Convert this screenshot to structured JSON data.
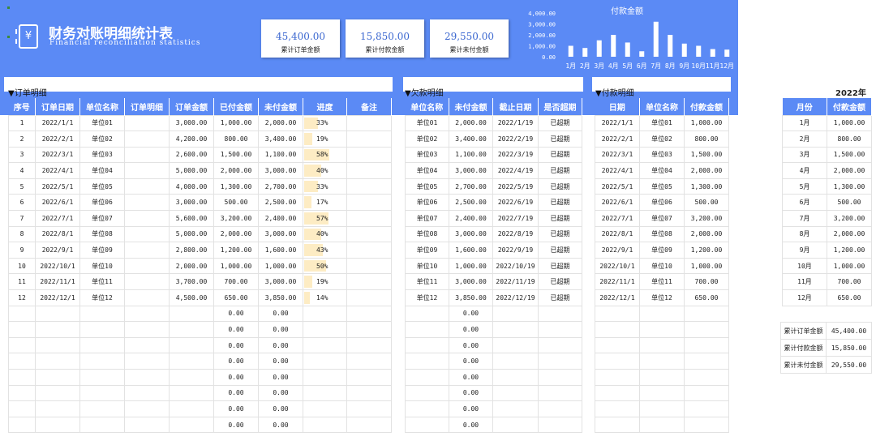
{
  "header": {
    "logo_glyph": "¥",
    "title": "财务对账明细统计表",
    "subtitle": "Financial reconciliation statistics",
    "kpis": [
      {
        "value": "45,400.00",
        "label": "累计订单金额"
      },
      {
        "value": "15,850.00",
        "label": "累计付款金额"
      },
      {
        "value": "29,550.00",
        "label": "累计未付金额"
      }
    ]
  },
  "chart_data": {
    "type": "bar",
    "title": "付款金额",
    "categories": [
      "1月",
      "2月",
      "3月",
      "4月",
      "5月",
      "6月",
      "7月",
      "8月",
      "9月",
      "10月",
      "11月",
      "12月"
    ],
    "values": [
      1000,
      800,
      1500,
      2000,
      1300,
      500,
      3200,
      2000,
      1200,
      1000,
      700,
      650
    ],
    "yticks": [
      "4,000.00",
      "3,000.00",
      "2,000.00",
      "1,000.00",
      "0.00"
    ],
    "ylim": [
      0,
      4000
    ],
    "bar_color": "#ffffff"
  },
  "orders": {
    "title": "▼订单明细",
    "headers": [
      "序号",
      "订单日期",
      "单位名称",
      "订单明细",
      "订单金额",
      "已付金额",
      "未付金额",
      "进度",
      "备注"
    ],
    "rows": [
      {
        "no": "1",
        "date": "2022/1/1",
        "unit": "单位01",
        "detail": "",
        "amount": "3,000.00",
        "paid": "1,000.00",
        "unpaid": "2,000.00",
        "progress": "33%",
        "p": 0.33,
        "note": ""
      },
      {
        "no": "2",
        "date": "2022/2/1",
        "unit": "单位02",
        "detail": "",
        "amount": "4,200.00",
        "paid": "800.00",
        "unpaid": "3,400.00",
        "progress": "19%",
        "p": 0.19,
        "note": ""
      },
      {
        "no": "3",
        "date": "2022/3/1",
        "unit": "单位03",
        "detail": "",
        "amount": "2,600.00",
        "paid": "1,500.00",
        "unpaid": "1,100.00",
        "progress": "58%",
        "p": 0.58,
        "note": ""
      },
      {
        "no": "4",
        "date": "2022/4/1",
        "unit": "单位04",
        "detail": "",
        "amount": "5,000.00",
        "paid": "2,000.00",
        "unpaid": "3,000.00",
        "progress": "40%",
        "p": 0.4,
        "note": ""
      },
      {
        "no": "5",
        "date": "2022/5/1",
        "unit": "单位05",
        "detail": "",
        "amount": "4,000.00",
        "paid": "1,300.00",
        "unpaid": "2,700.00",
        "progress": "33%",
        "p": 0.33,
        "note": ""
      },
      {
        "no": "6",
        "date": "2022/6/1",
        "unit": "单位06",
        "detail": "",
        "amount": "3,000.00",
        "paid": "500.00",
        "unpaid": "2,500.00",
        "progress": "17%",
        "p": 0.17,
        "note": ""
      },
      {
        "no": "7",
        "date": "2022/7/1",
        "unit": "单位07",
        "detail": "",
        "amount": "5,600.00",
        "paid": "3,200.00",
        "unpaid": "2,400.00",
        "progress": "57%",
        "p": 0.57,
        "note": ""
      },
      {
        "no": "8",
        "date": "2022/8/1",
        "unit": "单位08",
        "detail": "",
        "amount": "5,000.00",
        "paid": "2,000.00",
        "unpaid": "3,000.00",
        "progress": "40%",
        "p": 0.4,
        "note": ""
      },
      {
        "no": "9",
        "date": "2022/9/1",
        "unit": "单位09",
        "detail": "",
        "amount": "2,800.00",
        "paid": "1,200.00",
        "unpaid": "1,600.00",
        "progress": "43%",
        "p": 0.43,
        "note": ""
      },
      {
        "no": "10",
        "date": "2022/10/1",
        "unit": "单位10",
        "detail": "",
        "amount": "2,000.00",
        "paid": "1,000.00",
        "unpaid": "1,000.00",
        "progress": "50%",
        "p": 0.5,
        "note": ""
      },
      {
        "no": "11",
        "date": "2022/11/1",
        "unit": "单位11",
        "detail": "",
        "amount": "3,700.00",
        "paid": "700.00",
        "unpaid": "3,000.00",
        "progress": "19%",
        "p": 0.19,
        "note": ""
      },
      {
        "no": "12",
        "date": "2022/12/1",
        "unit": "单位12",
        "detail": "",
        "amount": "4,500.00",
        "paid": "650.00",
        "unpaid": "3,850.00",
        "progress": "14%",
        "p": 0.14,
        "note": ""
      },
      {
        "no": "",
        "date": "",
        "unit": "",
        "detail": "",
        "amount": "",
        "paid": "0.00",
        "unpaid": "0.00",
        "progress": "",
        "p": 0,
        "note": ""
      },
      {
        "no": "",
        "date": "",
        "unit": "",
        "detail": "",
        "amount": "",
        "paid": "0.00",
        "unpaid": "0.00",
        "progress": "",
        "p": 0,
        "note": ""
      },
      {
        "no": "",
        "date": "",
        "unit": "",
        "detail": "",
        "amount": "",
        "paid": "0.00",
        "unpaid": "0.00",
        "progress": "",
        "p": 0,
        "note": ""
      },
      {
        "no": "",
        "date": "",
        "unit": "",
        "detail": "",
        "amount": "",
        "paid": "0.00",
        "unpaid": "0.00",
        "progress": "",
        "p": 0,
        "note": ""
      },
      {
        "no": "",
        "date": "",
        "unit": "",
        "detail": "",
        "amount": "",
        "paid": "0.00",
        "unpaid": "0.00",
        "progress": "",
        "p": 0,
        "note": ""
      },
      {
        "no": "",
        "date": "",
        "unit": "",
        "detail": "",
        "amount": "",
        "paid": "0.00",
        "unpaid": "0.00",
        "progress": "",
        "p": 0,
        "note": ""
      },
      {
        "no": "",
        "date": "",
        "unit": "",
        "detail": "",
        "amount": "",
        "paid": "0.00",
        "unpaid": "0.00",
        "progress": "",
        "p": 0,
        "note": ""
      },
      {
        "no": "",
        "date": "",
        "unit": "",
        "detail": "",
        "amount": "",
        "paid": "0.00",
        "unpaid": "0.00",
        "progress": "",
        "p": 0,
        "note": ""
      }
    ]
  },
  "arrears": {
    "title": "▼欠款明细",
    "headers": [
      "单位名称",
      "未付金额",
      "截止日期",
      "是否超期"
    ],
    "rows": [
      {
        "unit": "单位01",
        "unpaid": "2,000.00",
        "due": "2022/1/19",
        "overdue": "已超期"
      },
      {
        "unit": "单位02",
        "unpaid": "3,400.00",
        "due": "2022/2/19",
        "overdue": "已超期"
      },
      {
        "unit": "单位03",
        "unpaid": "1,100.00",
        "due": "2022/3/19",
        "overdue": "已超期"
      },
      {
        "unit": "单位04",
        "unpaid": "3,000.00",
        "due": "2022/4/19",
        "overdue": "已超期"
      },
      {
        "unit": "单位05",
        "unpaid": "2,700.00",
        "due": "2022/5/19",
        "overdue": "已超期"
      },
      {
        "unit": "单位06",
        "unpaid": "2,500.00",
        "due": "2022/6/19",
        "overdue": "已超期"
      },
      {
        "unit": "单位07",
        "unpaid": "2,400.00",
        "due": "2022/7/19",
        "overdue": "已超期"
      },
      {
        "unit": "单位08",
        "unpaid": "3,000.00",
        "due": "2022/8/19",
        "overdue": "已超期"
      },
      {
        "unit": "单位09",
        "unpaid": "1,600.00",
        "due": "2022/9/19",
        "overdue": "已超期"
      },
      {
        "unit": "单位10",
        "unpaid": "1,000.00",
        "due": "2022/10/19",
        "overdue": "已超期"
      },
      {
        "unit": "单位11",
        "unpaid": "3,000.00",
        "due": "2022/11/19",
        "overdue": "已超期"
      },
      {
        "unit": "单位12",
        "unpaid": "3,850.00",
        "due": "2022/12/19",
        "overdue": "已超期"
      },
      {
        "unit": "",
        "unpaid": "0.00",
        "due": "",
        "overdue": ""
      },
      {
        "unit": "",
        "unpaid": "0.00",
        "due": "",
        "overdue": ""
      },
      {
        "unit": "",
        "unpaid": "0.00",
        "due": "",
        "overdue": ""
      },
      {
        "unit": "",
        "unpaid": "0.00",
        "due": "",
        "overdue": ""
      },
      {
        "unit": "",
        "unpaid": "0.00",
        "due": "",
        "overdue": ""
      },
      {
        "unit": "",
        "unpaid": "0.00",
        "due": "",
        "overdue": ""
      },
      {
        "unit": "",
        "unpaid": "0.00",
        "due": "",
        "overdue": ""
      },
      {
        "unit": "",
        "unpaid": "0.00",
        "due": "",
        "overdue": ""
      }
    ]
  },
  "payments": {
    "title": "▼付款明细",
    "headers": [
      "日期",
      "单位名称",
      "付款金额"
    ],
    "rows": [
      {
        "date": "2022/1/1",
        "unit": "单位01",
        "amount": "1,000.00"
      },
      {
        "date": "2022/2/1",
        "unit": "单位02",
        "amount": "800.00"
      },
      {
        "date": "2022/3/1",
        "unit": "单位03",
        "amount": "1,500.00"
      },
      {
        "date": "2022/4/1",
        "unit": "单位04",
        "amount": "2,000.00"
      },
      {
        "date": "2022/5/1",
        "unit": "单位05",
        "amount": "1,300.00"
      },
      {
        "date": "2022/6/1",
        "unit": "单位06",
        "amount": "500.00"
      },
      {
        "date": "2022/7/1",
        "unit": "单位07",
        "amount": "3,200.00"
      },
      {
        "date": "2022/8/1",
        "unit": "单位08",
        "amount": "2,000.00"
      },
      {
        "date": "2022/9/1",
        "unit": "单位09",
        "amount": "1,200.00"
      },
      {
        "date": "2022/10/1",
        "unit": "单位10",
        "amount": "1,000.00"
      },
      {
        "date": "2022/11/1",
        "unit": "单位11",
        "amount": "700.00"
      },
      {
        "date": "2022/12/1",
        "unit": "单位12",
        "amount": "650.00"
      },
      {
        "date": "",
        "unit": "",
        "amount": ""
      },
      {
        "date": "",
        "unit": "",
        "amount": ""
      },
      {
        "date": "",
        "unit": "",
        "amount": ""
      },
      {
        "date": "",
        "unit": "",
        "amount": ""
      },
      {
        "date": "",
        "unit": "",
        "amount": ""
      },
      {
        "date": "",
        "unit": "",
        "amount": ""
      },
      {
        "date": "",
        "unit": "",
        "amount": ""
      },
      {
        "date": "",
        "unit": "",
        "amount": ""
      }
    ]
  },
  "monthly": {
    "year": "2022年",
    "headers": [
      "月份",
      "付款金额"
    ],
    "rows": [
      {
        "month": "1月",
        "amount": "1,000.00"
      },
      {
        "month": "2月",
        "amount": "800.00"
      },
      {
        "month": "3月",
        "amount": "1,500.00"
      },
      {
        "month": "4月",
        "amount": "2,000.00"
      },
      {
        "month": "5月",
        "amount": "1,300.00"
      },
      {
        "month": "6月",
        "amount": "500.00"
      },
      {
        "month": "7月",
        "amount": "3,200.00"
      },
      {
        "month": "8月",
        "amount": "2,000.00"
      },
      {
        "month": "9月",
        "amount": "1,200.00"
      },
      {
        "month": "10月",
        "amount": "1,000.00"
      },
      {
        "month": "11月",
        "amount": "700.00"
      },
      {
        "month": "12月",
        "amount": "650.00"
      }
    ]
  },
  "summary": [
    {
      "label": "累计订单金额",
      "value": "45,400.00"
    },
    {
      "label": "累计付款金额",
      "value": "15,850.00"
    },
    {
      "label": "累计未付金额",
      "value": "29,550.00"
    }
  ]
}
